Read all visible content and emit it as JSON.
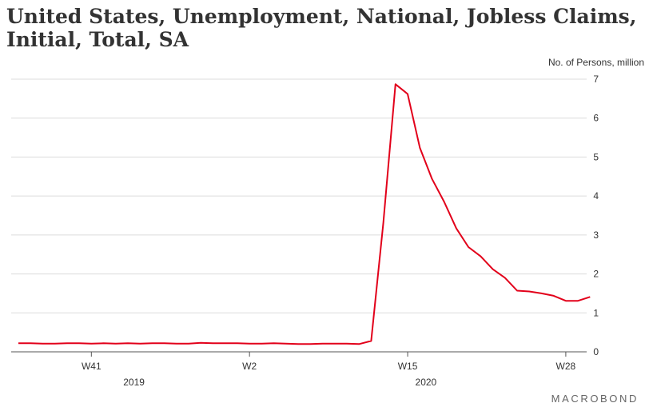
{
  "chart_data": {
    "type": "line",
    "title": "United States, Unemployment, National, Jobless Claims, Initial, Total, SA",
    "ylabel": "No. of Persons, million",
    "ylim": [
      0,
      7
    ],
    "yticks": [
      "0",
      "1",
      "2",
      "3",
      "4",
      "5",
      "6",
      "7"
    ],
    "xticks": [
      {
        "label": "W41",
        "index": 6
      },
      {
        "label": "W2",
        "index": 19
      },
      {
        "label": "W15",
        "index": 32
      },
      {
        "label": "W28",
        "index": 45
      }
    ],
    "years": [
      {
        "label": "2019",
        "index": 9.5
      },
      {
        "label": "2020",
        "index": 33.5
      }
    ],
    "grid": true,
    "legend": "none",
    "line_color": "#e2001a",
    "series": [
      {
        "values": [
          0.22,
          0.22,
          0.21,
          0.21,
          0.22,
          0.22,
          0.21,
          0.22,
          0.21,
          0.22,
          0.21,
          0.22,
          0.22,
          0.21,
          0.21,
          0.23,
          0.22,
          0.22,
          0.22,
          0.21,
          0.21,
          0.22,
          0.21,
          0.2,
          0.2,
          0.21,
          0.21,
          0.21,
          0.2,
          0.28,
          3.31,
          6.87,
          6.62,
          5.24,
          4.44,
          3.85,
          3.17,
          2.69,
          2.45,
          2.12,
          1.9,
          1.57,
          1.55,
          1.5,
          1.44,
          1.31,
          1.31,
          1.41
        ]
      }
    ]
  },
  "branding": {
    "logo_text": "MACROBOND"
  }
}
